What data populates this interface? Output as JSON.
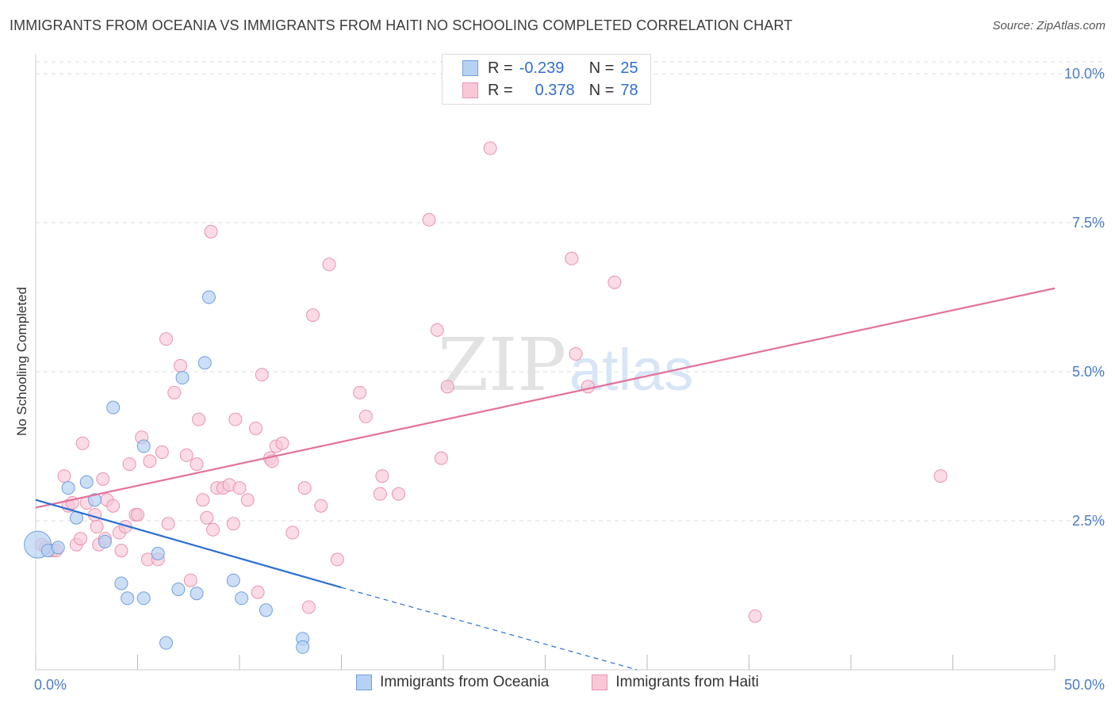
{
  "header": {
    "title": "IMMIGRANTS FROM OCEANIA VS IMMIGRANTS FROM HAITI NO SCHOOLING COMPLETED CORRELATION CHART",
    "source": "Source: ZipAtlas.com"
  },
  "watermark": {
    "zip": "ZIP",
    "atlas": "atlas"
  },
  "legend_top": {
    "rows": [
      {
        "r_label": "R =",
        "r_value": "-0.239",
        "n_label": "N =",
        "n_value": "25"
      },
      {
        "r_label": "R =",
        "r_value": "0.378",
        "n_label": "N =",
        "n_value": "78"
      }
    ]
  },
  "legend_bottom": {
    "items": [
      {
        "label": "Immigrants from Oceania"
      },
      {
        "label": "Immigrants from Haiti"
      }
    ]
  },
  "colors": {
    "blue_fill": "#b7d1f2",
    "blue_stroke": "#6f9fe0",
    "blue_line": "#2c6fd3",
    "pink_fill": "#f9c8d7",
    "pink_stroke": "#e993b0",
    "pink_line": "#e2729a",
    "grid": "#dddddd",
    "axis_text": "#4a7cc4"
  },
  "chart_data": {
    "type": "scatter",
    "title": "IMMIGRANTS FROM OCEANIA VS IMMIGRANTS FROM HAITI NO SCHOOLING COMPLETED CORRELATION CHART",
    "xlabel": "",
    "ylabel": "No Schooling Completed",
    "xlim": [
      0,
      50
    ],
    "ylim": [
      0,
      10.2
    ],
    "x_tick_labels": [
      "0.0%",
      "50.0%"
    ],
    "y_ticks": [
      2.5,
      5.0,
      7.5,
      10.0
    ],
    "y_tick_labels": [
      "2.5%",
      "5.0%",
      "7.5%",
      "10.0%"
    ],
    "grid": true,
    "legend_position": "top-center",
    "series": [
      {
        "name": "Immigrants from Oceania",
        "r": -0.239,
        "n": 25,
        "trend": {
          "x0": 0,
          "y0": 2.85,
          "x1": 15,
          "y1": 1.38,
          "dashed_to_x": 29.5,
          "dashed_to_y": 0.0
        },
        "points": [
          [
            0.1,
            2.1,
            3
          ],
          [
            0.6,
            2.0,
            1
          ],
          [
            1.1,
            2.05,
            1
          ],
          [
            1.6,
            3.05,
            1
          ],
          [
            2.0,
            2.55,
            1
          ],
          [
            2.5,
            3.15,
            1
          ],
          [
            2.9,
            2.85,
            1
          ],
          [
            3.4,
            2.15,
            1
          ],
          [
            3.8,
            4.4,
            1
          ],
          [
            4.2,
            1.45,
            1
          ],
          [
            4.5,
            1.2,
            1
          ],
          [
            5.3,
            1.2,
            1
          ],
          [
            5.3,
            3.75,
            1
          ],
          [
            6.0,
            1.95,
            1
          ],
          [
            6.4,
            0.45,
            1
          ],
          [
            7.0,
            1.35,
            1
          ],
          [
            7.2,
            4.9,
            1
          ],
          [
            7.9,
            1.28,
            1
          ],
          [
            8.3,
            5.15,
            1
          ],
          [
            8.5,
            6.25,
            1
          ],
          [
            9.7,
            1.5,
            1
          ],
          [
            10.1,
            1.2,
            1
          ],
          [
            11.3,
            1.0,
            1
          ],
          [
            13.1,
            0.52,
            1
          ],
          [
            13.1,
            0.38,
            1
          ]
        ]
      },
      {
        "name": "Immigrants from Haiti",
        "r": 0.378,
        "n": 78,
        "trend": {
          "x0": 0,
          "y0": 2.72,
          "x1": 50,
          "y1": 6.4
        },
        "points": [
          [
            0.3,
            2.1
          ],
          [
            0.5,
            2.05
          ],
          [
            0.8,
            2.0
          ],
          [
            1.0,
            2.0
          ],
          [
            1.4,
            3.25
          ],
          [
            1.6,
            2.75
          ],
          [
            1.8,
            2.8
          ],
          [
            2.0,
            2.1
          ],
          [
            2.2,
            2.2
          ],
          [
            2.3,
            3.8
          ],
          [
            2.5,
            2.8
          ],
          [
            2.9,
            2.6
          ],
          [
            3.0,
            2.4
          ],
          [
            3.1,
            2.1
          ],
          [
            3.3,
            3.2
          ],
          [
            3.4,
            2.2
          ],
          [
            3.5,
            2.85
          ],
          [
            3.8,
            2.75
          ],
          [
            4.1,
            2.3
          ],
          [
            4.2,
            2.0
          ],
          [
            4.4,
            2.4
          ],
          [
            4.6,
            3.45
          ],
          [
            4.9,
            2.6
          ],
          [
            5.0,
            2.6
          ],
          [
            5.2,
            3.9
          ],
          [
            5.5,
            1.85
          ],
          [
            5.6,
            3.5
          ],
          [
            6.0,
            1.85
          ],
          [
            6.2,
            3.65
          ],
          [
            6.4,
            5.55
          ],
          [
            6.5,
            2.45
          ],
          [
            6.8,
            4.65
          ],
          [
            7.1,
            5.1
          ],
          [
            7.4,
            3.6
          ],
          [
            7.6,
            1.5
          ],
          [
            7.9,
            3.45
          ],
          [
            8.0,
            4.2
          ],
          [
            8.2,
            2.85
          ],
          [
            8.4,
            2.55
          ],
          [
            8.6,
            7.35
          ],
          [
            8.7,
            2.35
          ],
          [
            8.9,
            3.05
          ],
          [
            9.2,
            3.05
          ],
          [
            9.5,
            3.1
          ],
          [
            9.7,
            2.45
          ],
          [
            9.8,
            4.2
          ],
          [
            10.0,
            3.05
          ],
          [
            10.4,
            2.85
          ],
          [
            10.8,
            4.05
          ],
          [
            10.9,
            1.3
          ],
          [
            11.1,
            4.95
          ],
          [
            11.5,
            3.55
          ],
          [
            11.6,
            3.5
          ],
          [
            11.8,
            3.75
          ],
          [
            12.1,
            3.8
          ],
          [
            12.6,
            2.3
          ],
          [
            13.2,
            3.05
          ],
          [
            13.4,
            1.05
          ],
          [
            13.6,
            5.95
          ],
          [
            14.0,
            2.75
          ],
          [
            14.4,
            6.8
          ],
          [
            14.8,
            1.85
          ],
          [
            15.9,
            4.65
          ],
          [
            16.2,
            4.25
          ],
          [
            16.9,
            2.95
          ],
          [
            17.0,
            3.25
          ],
          [
            17.8,
            2.95
          ],
          [
            19.3,
            7.55
          ],
          [
            19.7,
            5.7
          ],
          [
            19.9,
            3.55
          ],
          [
            20.2,
            4.75
          ],
          [
            22.3,
            8.75
          ],
          [
            26.3,
            6.9
          ],
          [
            27.1,
            4.75
          ],
          [
            26.5,
            5.3
          ],
          [
            28.4,
            6.5
          ],
          [
            35.3,
            0.9
          ],
          [
            44.4,
            3.25
          ]
        ]
      }
    ]
  }
}
